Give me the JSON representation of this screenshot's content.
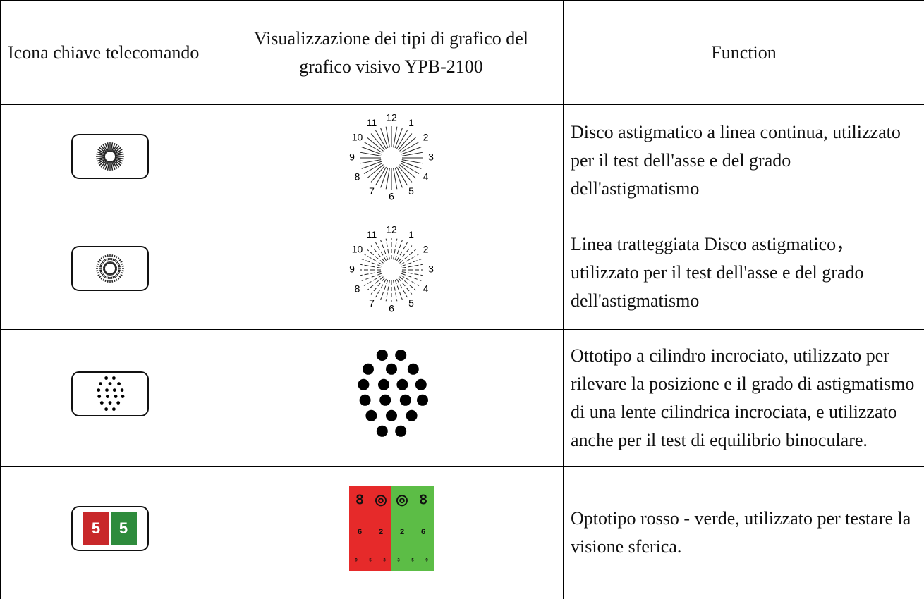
{
  "table": {
    "headers": [
      "Icona chiave telecomando",
      "Visualizzazione dei tipi di grafico del grafico visivo YPB-2100",
      "Function"
    ],
    "rows": [
      {
        "function": "Disco astigmatico a linea continua, utilizzato per il test dell'asse e del grado dell'astigmatismo"
      },
      {
        "function": "Linea tratteggiata Disco astigmatico，utilizzato per il test dell'asse e del grado dell'astigmatismo"
      },
      {
        "function": "Ottotipo a cilindro incrociato, utilizzato per rilevare la posizione e il grado di astigmatismo di una lente cilindrica incrociata, e utilizzato anche per il test di equilibrio binoculare."
      },
      {
        "function": "Optotipo rosso - verde, utilizzato per testare la visione sferica."
      }
    ]
  },
  "dial_numbers": [
    "1",
    "2",
    "3",
    "4",
    "5",
    "6",
    "7",
    "8",
    "9",
    "10",
    "11",
    "12"
  ],
  "red_green_chart": {
    "left": [
      [
        "8",
        "◎"
      ],
      [
        "6",
        "2"
      ],
      [
        "9",
        "5",
        "3"
      ]
    ],
    "right": [
      [
        "◎",
        "8"
      ],
      [
        "2",
        "6"
      ],
      [
        "3",
        "5",
        "9"
      ]
    ]
  },
  "icon_digits": [
    "5",
    "5"
  ]
}
